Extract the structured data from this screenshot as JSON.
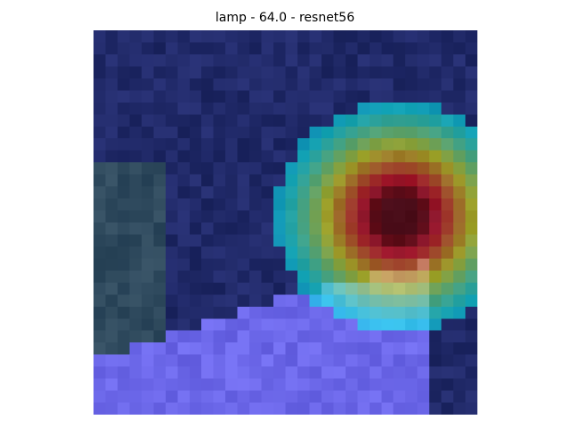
{
  "figure": {
    "title": "lamp - 64.0 - resnet56"
  },
  "image": {
    "description_icon": "gradcam-heatmap-image",
    "grid_size": 32,
    "hotspot": {
      "row": 15,
      "col": 25,
      "value": 1.0
    },
    "palette": {
      "dark_navy": "#1c2850",
      "blue": "#2a3ca8",
      "lavender": "#7070c8",
      "cyan": "#5ee0d8",
      "green": "#6cc060",
      "yellow": "#f0e068",
      "red": "#e06060",
      "dark_red": "#9a1818"
    }
  }
}
